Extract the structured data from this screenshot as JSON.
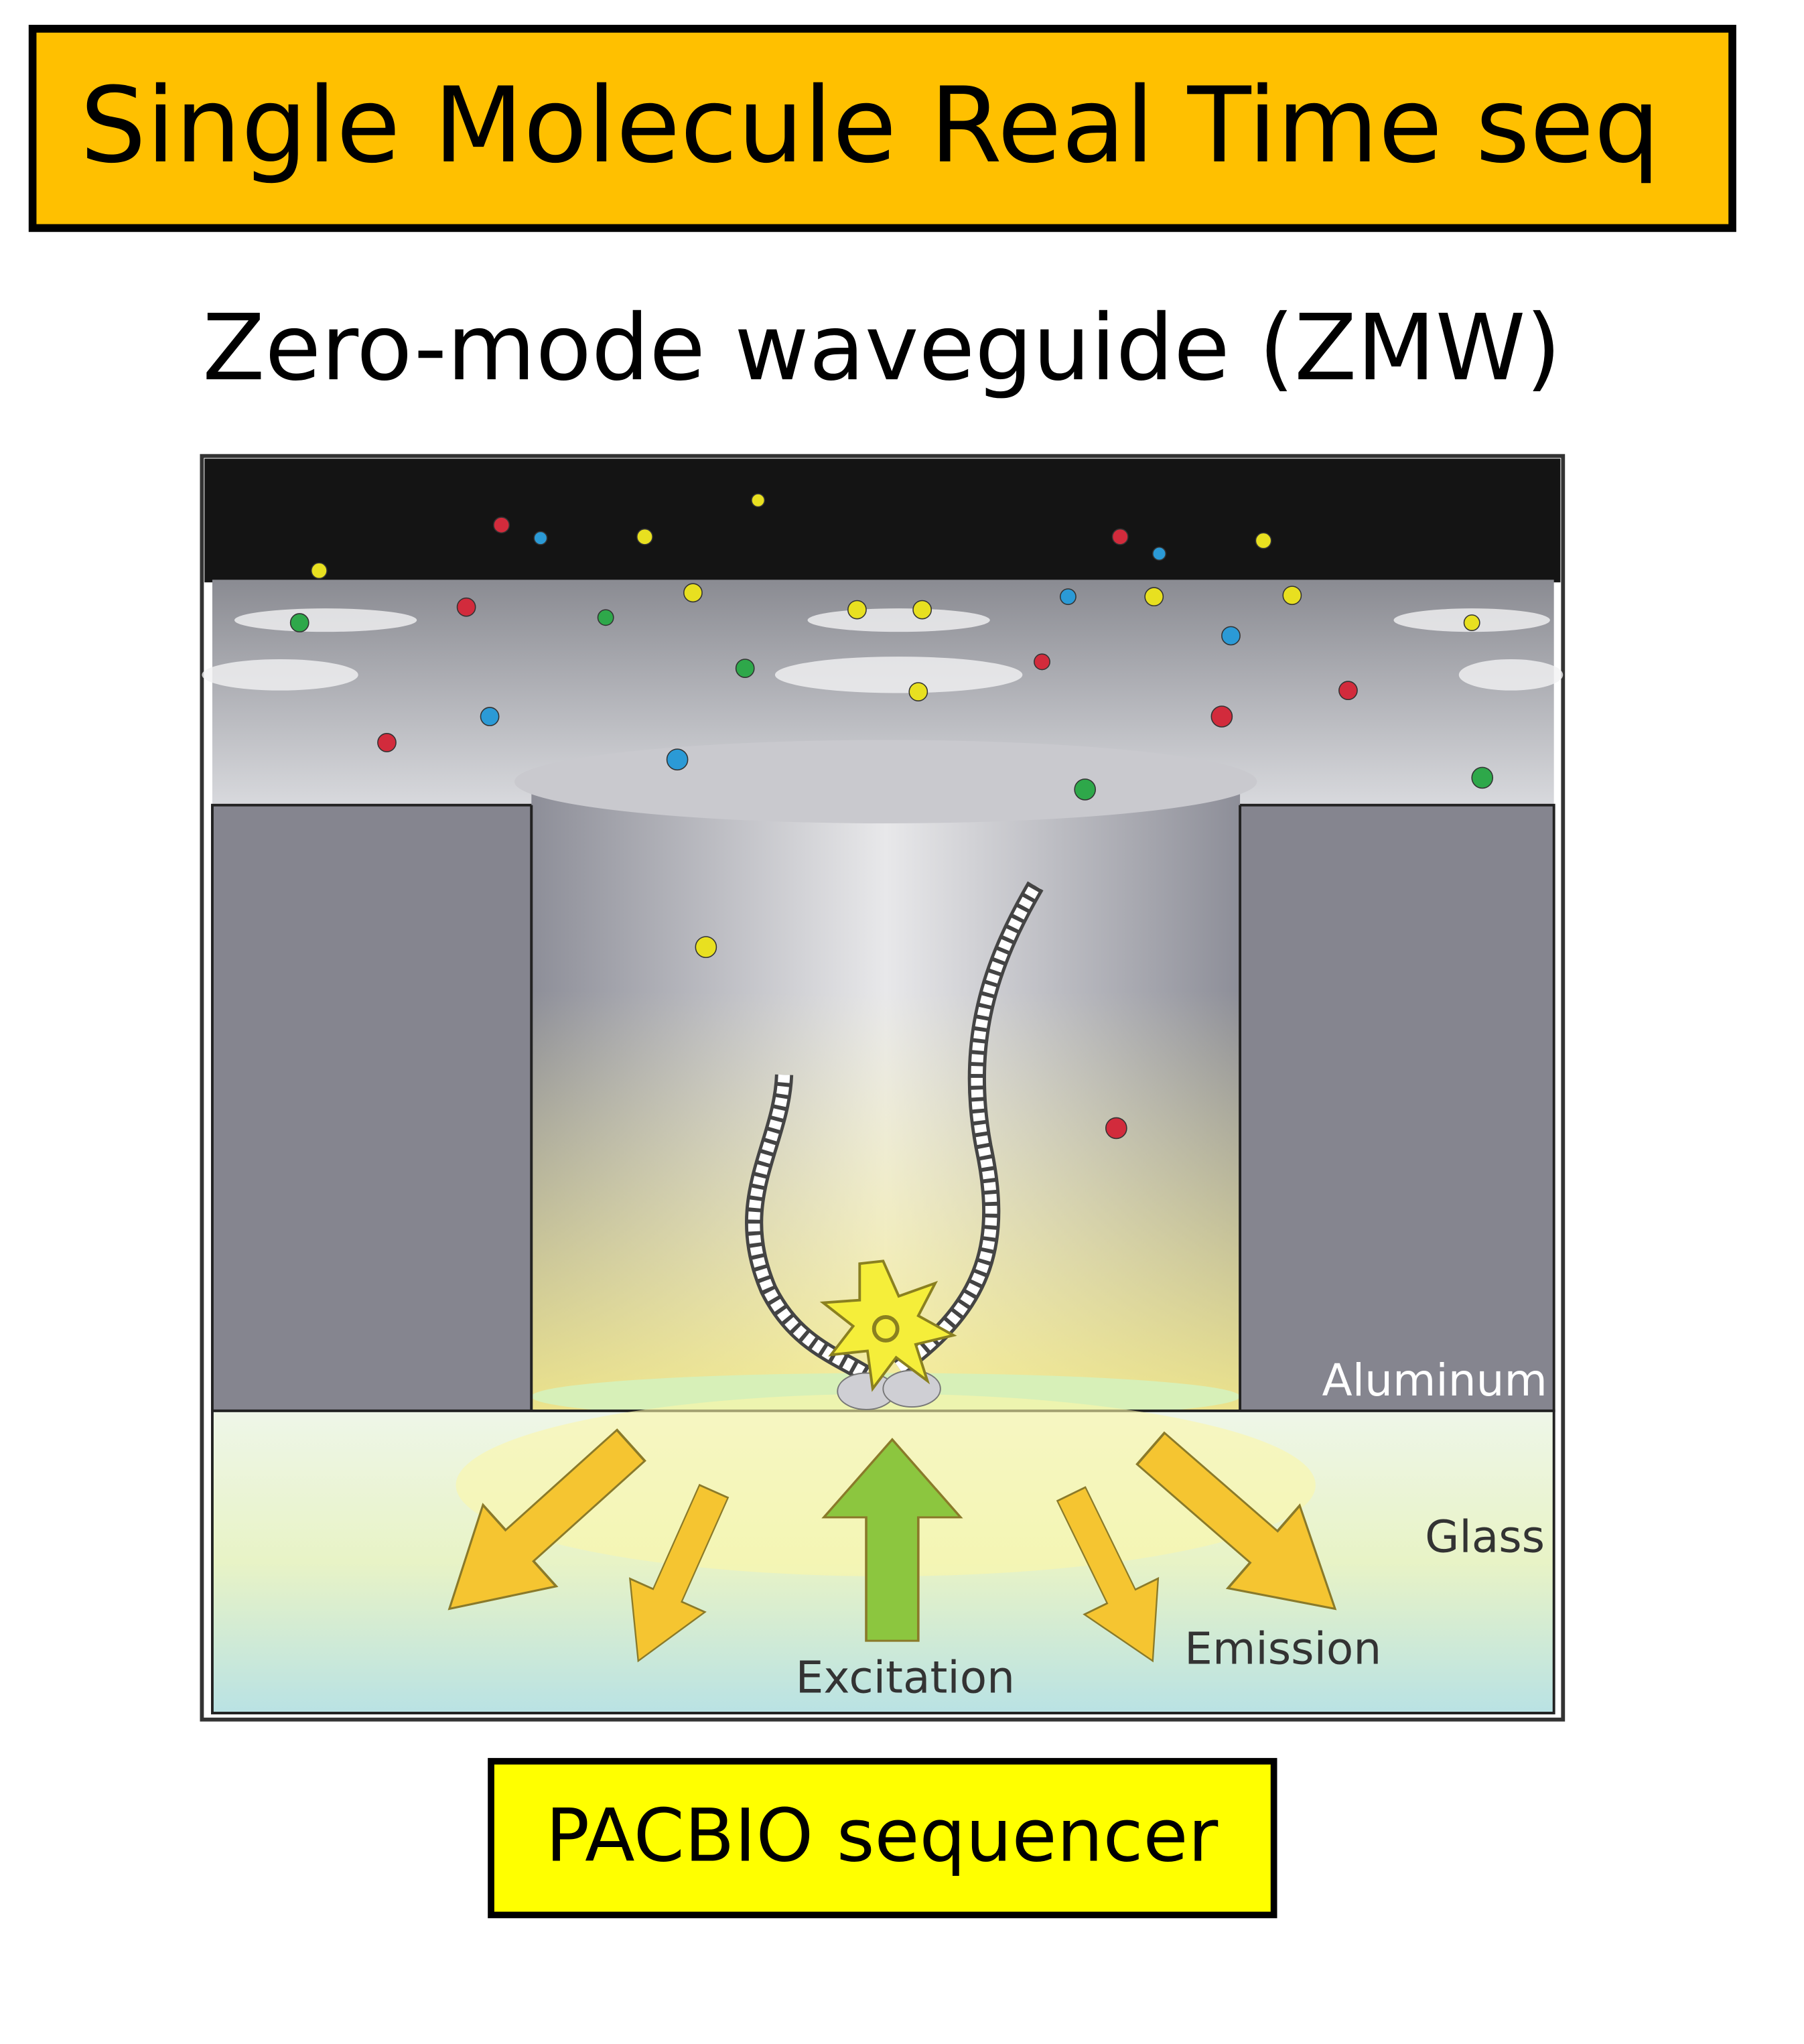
{
  "header": {
    "title": "Single Molecule Real Time seq"
  },
  "subtitle": "Zero-mode waveguide (ZMW)",
  "diagram": {
    "labels": {
      "aluminum": "Aluminum",
      "glass": "Glass",
      "excitation": "Excitation",
      "emission": "Emission"
    }
  },
  "footer": {
    "label": "PACBIO sequencer"
  }
}
